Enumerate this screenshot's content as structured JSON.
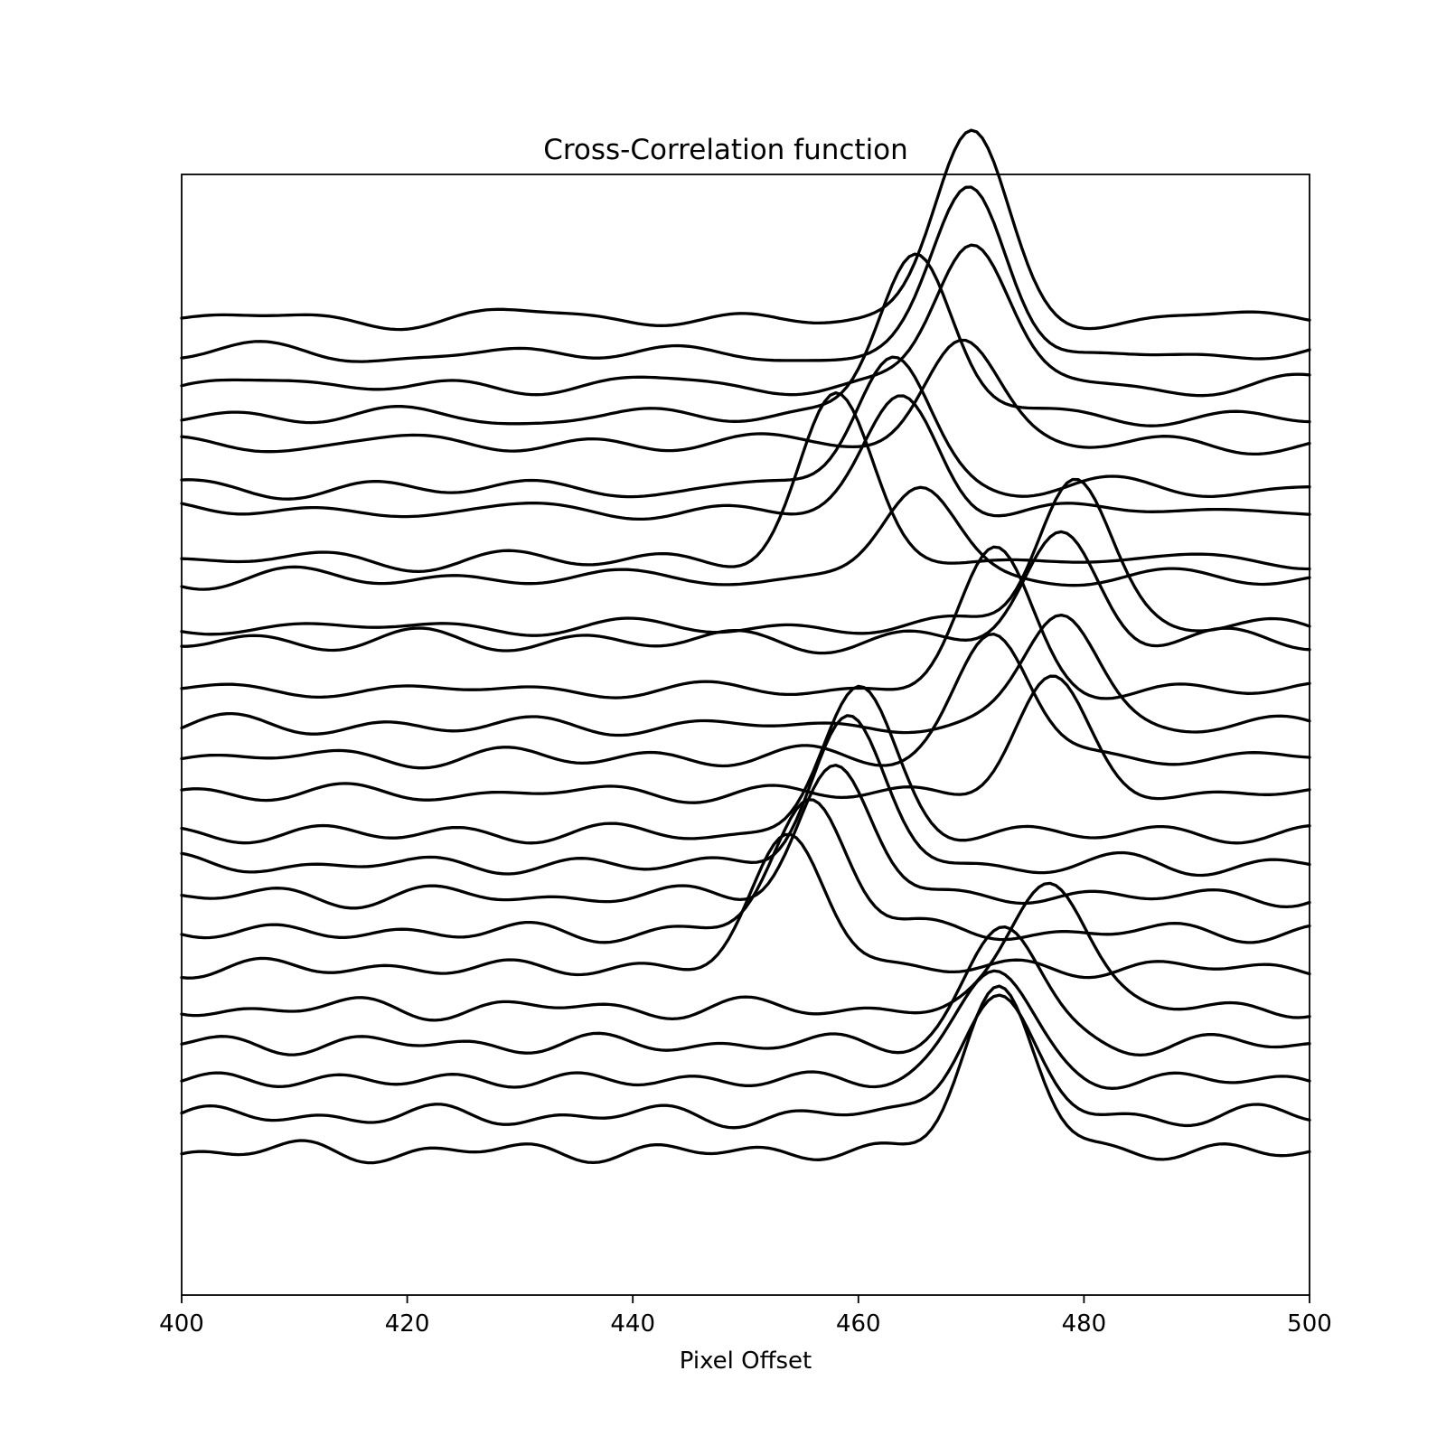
{
  "chart_data": {
    "type": "line",
    "title": "Cross-Correlation function",
    "xlabel": "Pixel Offset",
    "ylabel": "",
    "xlim": [
      400,
      500
    ],
    "ylim": [
      -2,
      23
    ],
    "xticks": [
      400,
      420,
      440,
      460,
      480,
      500
    ],
    "yticks": [],
    "grid": false,
    "legend": "none",
    "line_color": "#000000",
    "series": [
      {
        "peak_x": 470.0,
        "peak_height": 4.0,
        "baseline": 19.8
      },
      {
        "peak_x": 470.0,
        "peak_height": 3.6,
        "baseline": 19.0
      },
      {
        "peak_x": 470.0,
        "peak_height": 3.2,
        "baseline": 18.3
      },
      {
        "peak_x": 465.0,
        "peak_height": 3.8,
        "baseline": 17.6
      },
      {
        "peak_x": 469.0,
        "peak_height": 2.3,
        "baseline": 17.0
      },
      {
        "peak_x": 463.0,
        "peak_height": 3.0,
        "baseline": 16.0
      },
      {
        "peak_x": 464.0,
        "peak_height": 2.4,
        "baseline": 15.5
      },
      {
        "peak_x": 458.0,
        "peak_height": 3.5,
        "baseline": 14.4
      },
      {
        "peak_x": 465.5,
        "peak_height": 2.0,
        "baseline": 14.0
      },
      {
        "peak_x": 479.0,
        "peak_height": 3.4,
        "baseline": 12.9
      },
      {
        "peak_x": 478.0,
        "peak_height": 2.3,
        "baseline": 12.6
      },
      {
        "peak_x": 472.0,
        "peak_height": 3.0,
        "baseline": 11.5
      },
      {
        "peak_x": 478.0,
        "peak_height": 2.5,
        "baseline": 10.7
      },
      {
        "peak_x": 472.0,
        "peak_height": 2.7,
        "baseline": 10.0
      },
      {
        "peak_x": 477.0,
        "peak_height": 2.4,
        "baseline": 9.2
      },
      {
        "peak_x": 460.0,
        "peak_height": 3.1,
        "baseline": 8.3
      },
      {
        "peak_x": 459.0,
        "peak_height": 3.2,
        "baseline": 7.6
      },
      {
        "peak_x": 458.0,
        "peak_height": 2.8,
        "baseline": 6.9
      },
      {
        "peak_x": 456.0,
        "peak_height": 3.0,
        "baseline": 6.1
      },
      {
        "peak_x": 454.0,
        "peak_height": 2.9,
        "baseline": 5.3
      },
      {
        "peak_x": 477.0,
        "peak_height": 3.0,
        "baseline": 4.4
      },
      {
        "peak_x": 473.0,
        "peak_height": 2.6,
        "baseline": 3.6
      },
      {
        "peak_x": 472.0,
        "peak_height": 2.5,
        "baseline": 2.8
      },
      {
        "peak_x": 472.0,
        "peak_height": 2.7,
        "baseline": 2.0
      },
      {
        "peak_x": 472.5,
        "peak_height": 3.6,
        "baseline": 1.2
      }
    ]
  }
}
